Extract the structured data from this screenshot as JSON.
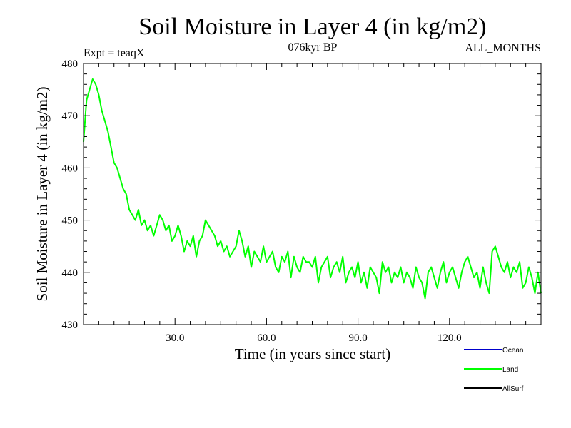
{
  "chart_data": {
    "type": "line",
    "title": "Soil Moisture in Layer 4 (in kg/m2)",
    "subtitle_left": "Expt = teaqX",
    "subtitle_center": "076kyr BP",
    "subtitle_right": "ALL_MONTHS",
    "xlabel": "Time (in years since start)",
    "ylabel": "Soil Moisture in Layer 4 (in kg/m2)",
    "xlim": [
      0,
      150
    ],
    "ylim": [
      430,
      480
    ],
    "x_ticks": [
      30,
      60,
      90,
      120
    ],
    "x_tick_labels": [
      "30.0",
      "60.0",
      "90.0",
      "120.0"
    ],
    "y_ticks": [
      430,
      440,
      450,
      460,
      470,
      480
    ],
    "y_tick_labels": [
      "430",
      "440",
      "450",
      "460",
      "470",
      "480"
    ],
    "legend_position": "bottom-right",
    "series": [
      {
        "name": "Ocean",
        "color": "#0000cc",
        "x": [],
        "values": []
      },
      {
        "name": "Land",
        "color": "#00ff00",
        "x": [
          0,
          1,
          2,
          3,
          4,
          5,
          6,
          7,
          8,
          9,
          10,
          11,
          12,
          13,
          14,
          15,
          16,
          17,
          18,
          19,
          20,
          21,
          22,
          23,
          24,
          25,
          26,
          27,
          28,
          29,
          30,
          31,
          32,
          33,
          34,
          35,
          36,
          37,
          38,
          39,
          40,
          41,
          42,
          43,
          44,
          45,
          46,
          47,
          48,
          49,
          50,
          51,
          52,
          53,
          54,
          55,
          56,
          57,
          58,
          59,
          60,
          61,
          62,
          63,
          64,
          65,
          66,
          67,
          68,
          69,
          70,
          71,
          72,
          73,
          74,
          75,
          76,
          77,
          78,
          79,
          80,
          81,
          82,
          83,
          84,
          85,
          86,
          87,
          88,
          89,
          90,
          91,
          92,
          93,
          94,
          95,
          96,
          97,
          98,
          99,
          100,
          101,
          102,
          103,
          104,
          105,
          106,
          107,
          108,
          109,
          110,
          111,
          112,
          113,
          114,
          115,
          116,
          117,
          118,
          119,
          120,
          121,
          122,
          123,
          124,
          125,
          126,
          127,
          128,
          129,
          130,
          131,
          132,
          133,
          134,
          135,
          136,
          137,
          138,
          139,
          140,
          141,
          142,
          143,
          144,
          145,
          146,
          147,
          148,
          149,
          150
        ],
        "values": [
          465,
          473,
          475,
          477,
          476,
          474,
          471,
          469,
          467,
          464,
          461,
          460,
          458,
          456,
          455,
          452,
          451,
          450,
          452,
          449,
          450,
          448,
          449,
          447,
          449,
          451,
          450,
          448,
          449,
          446,
          447,
          449,
          447,
          444,
          446,
          445,
          447,
          443,
          446,
          447,
          450,
          449,
          448,
          447,
          445,
          446,
          444,
          445,
          443,
          444,
          445,
          448,
          446,
          443,
          445,
          441,
          444,
          443,
          442,
          445,
          442,
          443,
          444,
          441,
          440,
          443,
          442,
          444,
          439,
          443,
          441,
          440,
          443,
          442,
          442,
          441,
          443,
          438,
          441,
          442,
          443,
          439,
          441,
          442,
          440,
          443,
          438,
          440,
          441,
          439,
          442,
          438,
          440,
          437,
          441,
          440,
          439,
          436,
          442,
          440,
          441,
          438,
          440,
          439,
          441,
          438,
          440,
          439,
          437,
          441,
          439,
          438,
          435,
          440,
          441,
          439,
          437,
          440,
          442,
          438,
          440,
          441,
          439,
          437,
          440,
          442,
          443,
          441,
          439,
          440,
          437,
          441,
          438,
          436,
          444,
          445,
          443,
          441,
          440,
          442,
          439,
          441,
          440,
          442,
          437,
          438,
          441,
          439,
          436,
          440,
          436
        ]
      },
      {
        "name": "AllSurf",
        "color": "#000000",
        "x": [],
        "values": []
      }
    ]
  }
}
